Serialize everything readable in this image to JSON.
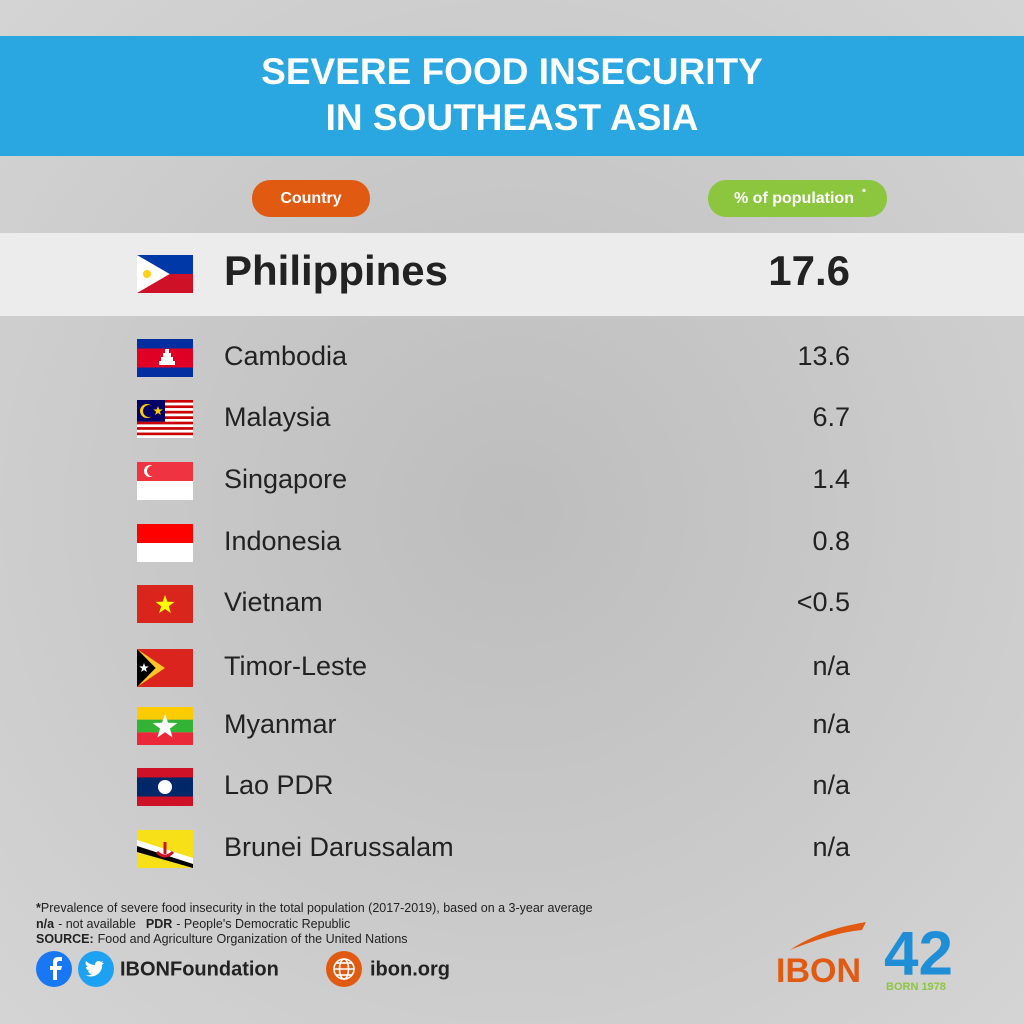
{
  "header": {
    "title_lines": [
      "SEVERE FOOD INSECURITY",
      "IN SOUTHEAST ASIA"
    ]
  },
  "table": {
    "columns": [
      "Country",
      "% of population"
    ],
    "column_note_mark": "*",
    "rows": [
      [
        "Philippines",
        17.6
      ],
      [
        "Cambodia",
        13.6
      ],
      [
        "Malaysia",
        6.7
      ],
      [
        "Singapore",
        1.4
      ],
      [
        "Indonesia",
        0.8
      ],
      [
        "Vietnam",
        "<0.5"
      ],
      [
        "Timor-Leste",
        "n/a"
      ],
      [
        "Myanmar",
        "n/a"
      ],
      [
        "Lao PDR",
        "n/a"
      ],
      [
        "Brunei Darussalam",
        "n/a"
      ]
    ]
  },
  "footnotes": {
    "note_mark": "*",
    "note": "Prevalence of severe food insecurity in the total population (2017-2019), based on a 3-year average",
    "abbreviations": [
      {
        "term": "n/a",
        "meaning": "- not available"
      },
      {
        "term": "PDR",
        "meaning": "- People's Democratic Republic"
      }
    ],
    "source_label": "SOURCE:",
    "source": "Food and Agriculture Organization of the United Nations"
  },
  "footer": {
    "social_handle": "IBONFoundation",
    "website": "ibon.org",
    "logo": "IBON",
    "anniversary": "42",
    "anniversary_note": "BORN 1978"
  }
}
